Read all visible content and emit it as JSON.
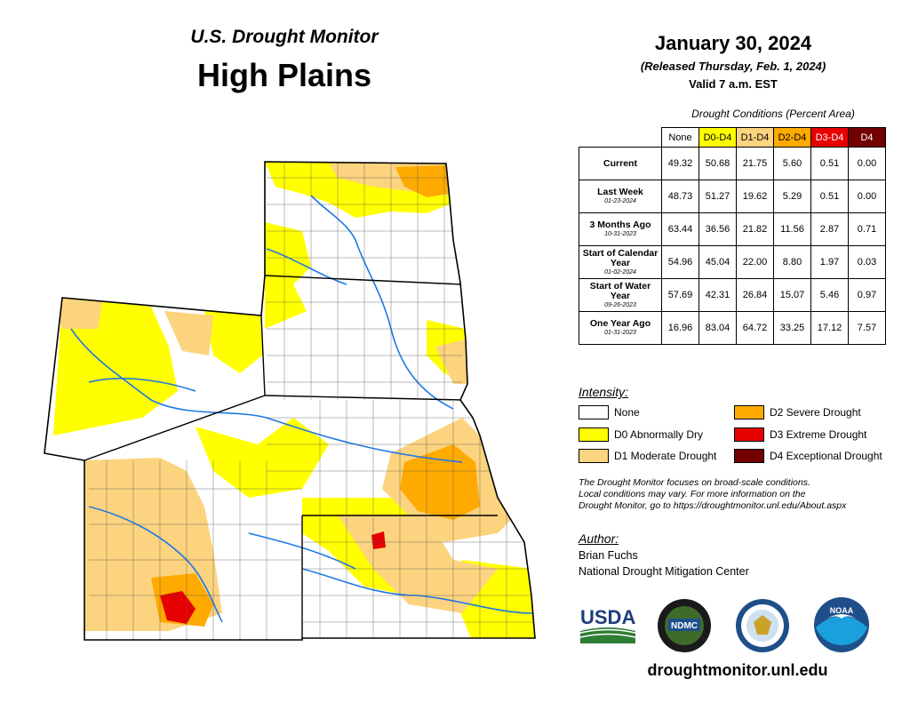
{
  "header": {
    "subtitle": "U.S. Drought Monitor",
    "region": "High Plains",
    "date": "January 30, 2024",
    "released": "(Released Thursday, Feb. 1, 2024)",
    "valid": "Valid 7 a.m. EST"
  },
  "table": {
    "caption": "Drought Conditions (Percent Area)",
    "columns": [
      "None",
      "D0-D4",
      "D1-D4",
      "D2-D4",
      "D3-D4",
      "D4"
    ],
    "column_colors": [
      "#ffffff",
      "#ffff00",
      "#fcd37f",
      "#ffaa00",
      "#e60000",
      "#730000"
    ],
    "rows": [
      {
        "label": "Current",
        "sub": "",
        "values": [
          "49.32",
          "50.68",
          "21.75",
          "5.60",
          "0.51",
          "0.00"
        ]
      },
      {
        "label": "Last Week",
        "sub": "01-23-2024",
        "values": [
          "48.73",
          "51.27",
          "19.62",
          "5.29",
          "0.51",
          "0.00"
        ]
      },
      {
        "label": "3 Months Ago",
        "sub": "10-31-2023",
        "values": [
          "63.44",
          "36.56",
          "21.82",
          "11.56",
          "2.87",
          "0.71"
        ]
      },
      {
        "label": "Start of Calendar Year",
        "sub": "01-02-2024",
        "values": [
          "54.96",
          "45.04",
          "22.00",
          "8.80",
          "1.97",
          "0.03"
        ]
      },
      {
        "label": "Start of Water Year",
        "sub": "09-26-2023",
        "values": [
          "57.69",
          "42.31",
          "26.84",
          "15.07",
          "5.46",
          "0.97"
        ]
      },
      {
        "label": "One Year Ago",
        "sub": "01-31-2023",
        "values": [
          "16.96",
          "83.04",
          "64.72",
          "33.25",
          "17.12",
          "7.57"
        ]
      }
    ]
  },
  "legend": {
    "title": "Intensity:",
    "items": [
      {
        "label": "None",
        "color": "#ffffff"
      },
      {
        "label": "D0 Abnormally Dry",
        "color": "#ffff00"
      },
      {
        "label": "D1 Moderate Drought",
        "color": "#fcd37f"
      },
      {
        "label": "D2 Severe Drought",
        "color": "#ffaa00"
      },
      {
        "label": "D3 Extreme Drought",
        "color": "#e60000"
      },
      {
        "label": "D4 Exceptional Drought",
        "color": "#730000"
      }
    ]
  },
  "note": {
    "line1": "The Drought Monitor focuses on broad-scale conditions.",
    "line2": "Local conditions may vary. For more information on the",
    "line3": "Drought Monitor, go to https://droughtmonitor.unl.edu/About.aspx"
  },
  "author": {
    "title": "Author:",
    "name": "Brian Fuchs",
    "org": "National Drought Mitigation Center"
  },
  "logos": {
    "usda": "USDA",
    "ndmc": "NDMC",
    "noaa": "NOAA"
  },
  "website": "droughtmonitor.unl.edu"
}
